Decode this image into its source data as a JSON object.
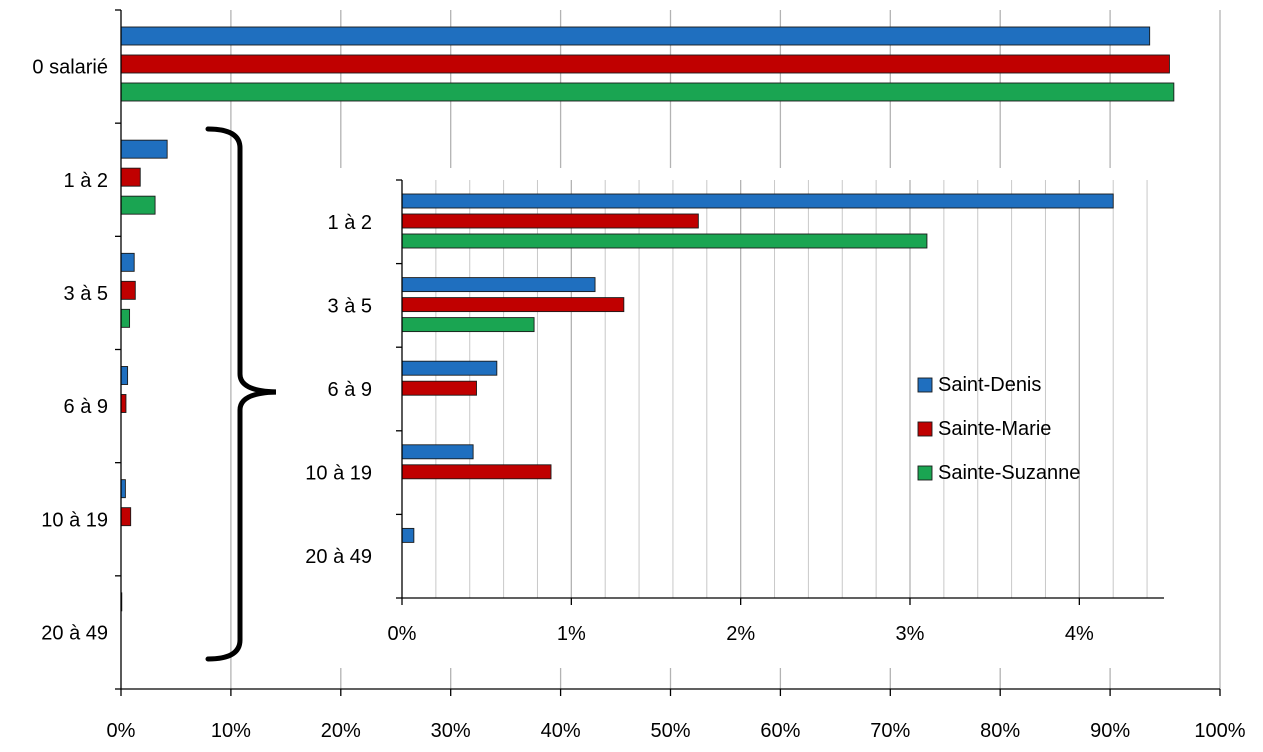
{
  "chart_data": [
    {
      "type": "bar",
      "orientation": "horizontal",
      "role": "main",
      "categories": [
        "0 salarié",
        "1 à 2",
        "3 à 5",
        "6 à 9",
        "10 à 19",
        "20 à 49"
      ],
      "series": [
        {
          "name": "Saint-Denis",
          "color": "#1f6fbf",
          "values": [
            93.6,
            4.2,
            1.2,
            0.6,
            0.4,
            0.07
          ]
        },
        {
          "name": "Sainte-Marie",
          "color": "#c00000",
          "values": [
            95.4,
            1.75,
            1.3,
            0.45,
            0.88,
            0
          ]
        },
        {
          "name": "Sainte-Suzanne",
          "color": "#1aa552",
          "values": [
            95.8,
            3.1,
            0.78,
            0,
            0,
            0
          ]
        }
      ],
      "xlim": [
        0,
        100
      ],
      "xticks": [
        "0%",
        "10%",
        "20%",
        "30%",
        "40%",
        "50%",
        "60%",
        "70%",
        "80%",
        "90%",
        "100%"
      ],
      "grid": true
    },
    {
      "type": "bar",
      "orientation": "horizontal",
      "role": "inset-zoom",
      "categories": [
        "1 à 2",
        "3 à 5",
        "6 à 9",
        "10 à 19",
        "20 à 49"
      ],
      "series": [
        {
          "name": "Saint-Denis",
          "color": "#1f6fbf",
          "values": [
            4.2,
            1.14,
            0.56,
            0.42,
            0.07
          ]
        },
        {
          "name": "Sainte-Marie",
          "color": "#c00000",
          "values": [
            1.75,
            1.31,
            0.44,
            0.88,
            0
          ]
        },
        {
          "name": "Sainte-Suzanne",
          "color": "#1aa552",
          "values": [
            3.1,
            0.78,
            0,
            0,
            0
          ]
        }
      ],
      "xlim": [
        0,
        4.5
      ],
      "xticks": [
        "0%",
        "1%",
        "2%",
        "3%",
        "4%"
      ],
      "grid": true,
      "legend": {
        "position": "right",
        "entries": [
          "Saint-Denis",
          "Sainte-Marie",
          "Sainte-Suzanne"
        ]
      }
    }
  ]
}
